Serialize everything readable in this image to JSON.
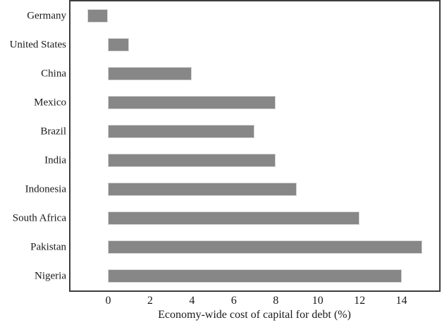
{
  "chart_data": {
    "type": "bar",
    "orientation": "horizontal",
    "title": "",
    "xlabel": "Economy-wide cost of capital for debt (%)",
    "ylabel": "",
    "categories": [
      "Germany",
      "United States",
      "China",
      "Mexico",
      "Brazil",
      "India",
      "Indonesia",
      "South Africa",
      "Pakistan",
      "Nigeria"
    ],
    "values": [
      -1,
      1,
      4,
      8,
      7,
      8,
      9,
      12,
      15,
      14
    ],
    "xticks": [
      0,
      2,
      4,
      6,
      8,
      10,
      12,
      14
    ],
    "xlim": [
      -1.8,
      15.8
    ],
    "grid": false,
    "legend": false,
    "tick_marks": false,
    "colors": {
      "bar_fill": "#878787",
      "bar_edge": "#d9d9d9",
      "frame": "#3d3d3d",
      "text": "#1a1a1a",
      "background": "#ffffff"
    }
  }
}
